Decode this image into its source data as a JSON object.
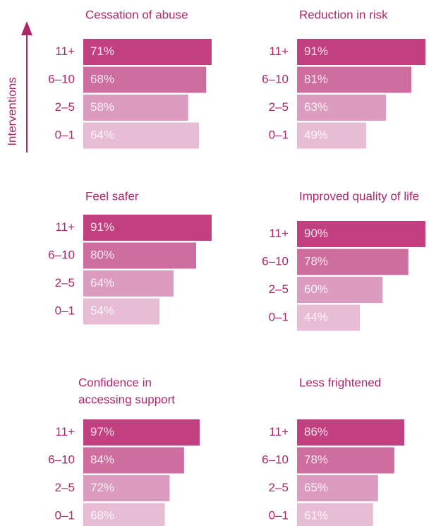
{
  "chart_data": [
    {
      "type": "bar",
      "orientation": "horizontal",
      "title": "Cessation of abuse",
      "ylabel": "Interventions",
      "categories": [
        "11+",
        "6–10",
        "2–5",
        "0–1"
      ],
      "values": [
        71,
        68,
        58,
        64
      ],
      "value_labels": [
        "71%",
        "68%",
        "58%",
        "64%"
      ],
      "colors": [
        "#c2407f",
        "#cd6e9e",
        "#dc9cbf",
        "#e8bcd4"
      ],
      "xlim": [
        0,
        71
      ]
    },
    {
      "type": "bar",
      "orientation": "horizontal",
      "title": "Reduction in risk",
      "categories": [
        "11+",
        "6–10",
        "2–5",
        "0–1"
      ],
      "values": [
        91,
        81,
        63,
        49
      ],
      "value_labels": [
        "91%",
        "81%",
        "63%",
        "49%"
      ],
      "colors": [
        "#c2407f",
        "#cd6e9e",
        "#dc9cbf",
        "#e8bcd4"
      ],
      "xlim": [
        0,
        91
      ]
    },
    {
      "type": "bar",
      "orientation": "horizontal",
      "title": "Feel safer",
      "categories": [
        "11+",
        "6–10",
        "2–5",
        "0–1"
      ],
      "values": [
        91,
        80,
        64,
        54
      ],
      "value_labels": [
        "91%",
        "80%",
        "64%",
        "54%"
      ],
      "colors": [
        "#c2407f",
        "#cd6e9e",
        "#dc9cbf",
        "#e8bcd4"
      ],
      "xlim": [
        0,
        91
      ]
    },
    {
      "type": "bar",
      "orientation": "horizontal",
      "title": "Improved quality of life",
      "categories": [
        "11+",
        "6–10",
        "2–5",
        "0–1"
      ],
      "values": [
        90,
        78,
        60,
        44
      ],
      "value_labels": [
        "90%",
        "78%",
        "60%",
        "44%"
      ],
      "colors": [
        "#c2407f",
        "#cd6e9e",
        "#dc9cbf",
        "#e8bcd4"
      ],
      "xlim": [
        0,
        90
      ]
    },
    {
      "type": "bar",
      "orientation": "horizontal",
      "title": [
        "Confidence in",
        "accessing support"
      ],
      "categories": [
        "11+",
        "6–10",
        "2–5",
        "0–1"
      ],
      "values": [
        97,
        84,
        72,
        68
      ],
      "value_labels": [
        "97%",
        "84%",
        "72%",
        "68%"
      ],
      "colors": [
        "#c2407f",
        "#cd6e9e",
        "#dc9cbf",
        "#e8bcd4"
      ],
      "xlim": [
        0,
        107
      ]
    },
    {
      "type": "bar",
      "orientation": "horizontal",
      "title": "Less frightened",
      "categories": [
        "11+",
        "6–10",
        "2–5",
        "0–1"
      ],
      "values": [
        86,
        78,
        65,
        61
      ],
      "value_labels": [
        "86%",
        "78%",
        "65%",
        "61%"
      ],
      "colors": [
        "#c2407f",
        "#cd6e9e",
        "#dc9cbf",
        "#e8bcd4"
      ],
      "xlim": [
        0,
        103
      ]
    }
  ]
}
